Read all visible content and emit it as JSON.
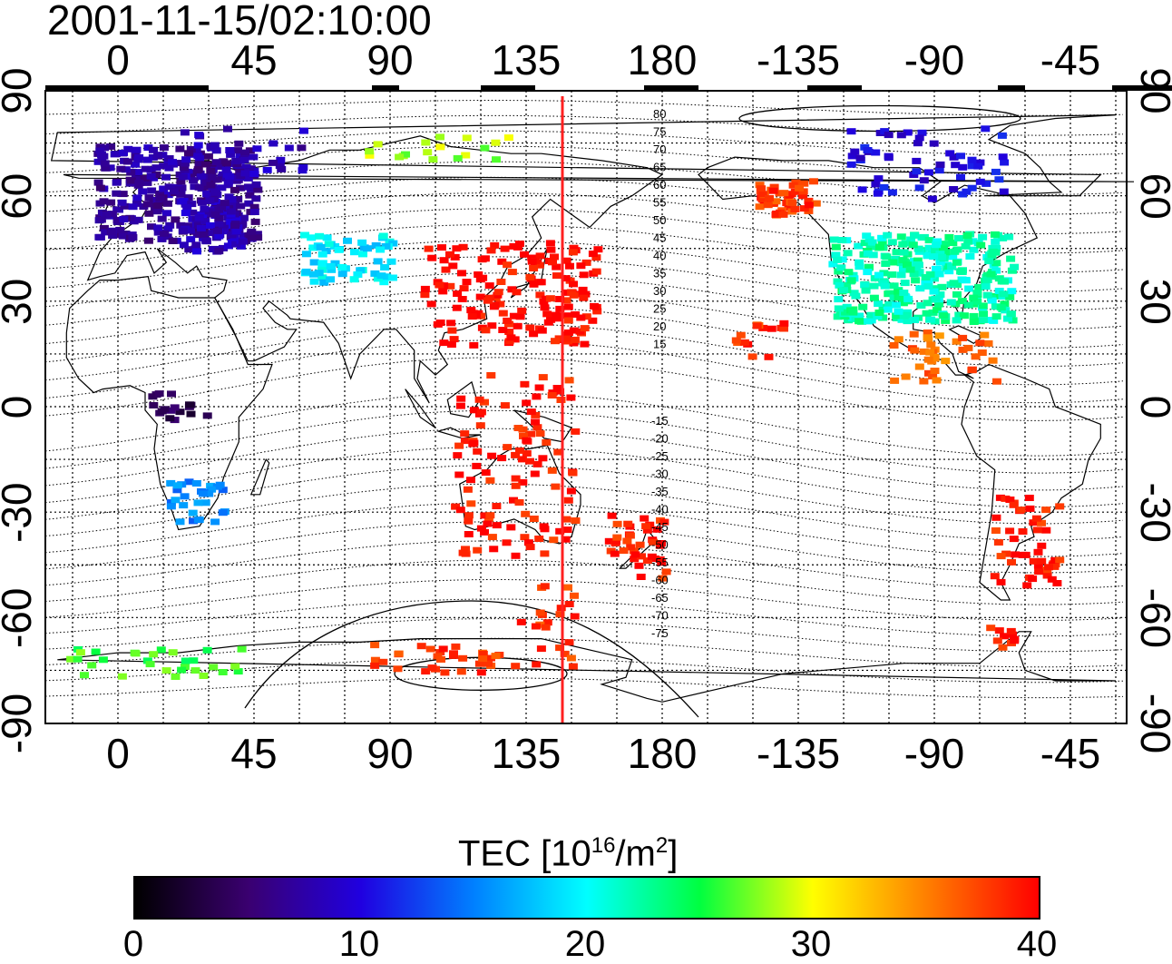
{
  "title": "2001-11-15/02:10:00",
  "map": {
    "lon_ticks": [
      "0",
      "45",
      "90",
      "135",
      "180",
      "-135",
      "-90",
      "-45"
    ],
    "lat_ticks": [
      "90",
      "60",
      "30",
      "0",
      "-30",
      "-60",
      "-90"
    ],
    "contour_labels_north": [
      "80",
      "75",
      "70",
      "65",
      "60",
      "55",
      "50",
      "45",
      "40",
      "35",
      "30",
      "25",
      "20",
      "15"
    ],
    "contour_labels_south": [
      "-15",
      "-20",
      "-25",
      "-30",
      "-35",
      "-40",
      "-45",
      "-50",
      "-55",
      "-60",
      "-65",
      "-70",
      "-75"
    ],
    "terminator_longitude": 147,
    "colors": {
      "terminator": "#ff2020",
      "frame": "#000000"
    }
  },
  "colorbar": {
    "label_main": "TEC  [10",
    "label_sup1": "16",
    "label_mid": "/m",
    "label_sup2": "2",
    "label_end": "]",
    "ticks": [
      "0",
      "10",
      "20",
      "30",
      "40"
    ],
    "range": [
      0,
      40
    ],
    "stops": [
      "#000000",
      "#3a0070",
      "#2000e0",
      "#0080ff",
      "#00ffff",
      "#00ff40",
      "#ffff00",
      "#ff8000",
      "#ff0000"
    ]
  }
}
